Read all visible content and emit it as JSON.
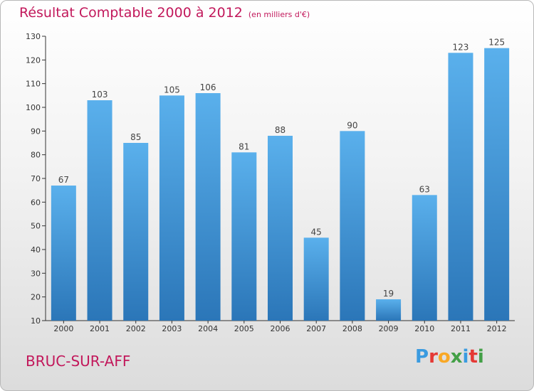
{
  "title": "Résultat Comptable 2000 à 2012",
  "subtitle": "(en milliers d'€)",
  "commune": "BRUC-SUR-AFF",
  "logo": {
    "text": "Proxiti",
    "colors": [
      "#3a9be0",
      "#e53935",
      "#f9a825",
      "#43a047",
      "#3a9be0",
      "#e53935",
      "#43a047"
    ]
  },
  "colors": {
    "title": "#c2185b",
    "bar_top": "#5ab0ec",
    "bar_bottom": "#2b76b8",
    "axis": "#333333"
  },
  "chart_data": {
    "type": "bar",
    "categories": [
      "2000",
      "2001",
      "2002",
      "2003",
      "2004",
      "2005",
      "2006",
      "2007",
      "2008",
      "2009",
      "2010",
      "2011",
      "2012"
    ],
    "values": [
      67,
      103,
      85,
      105,
      106,
      81,
      88,
      45,
      90,
      19,
      63,
      123,
      125
    ],
    "ylim": [
      10,
      130
    ],
    "yticks": [
      10,
      20,
      30,
      40,
      50,
      60,
      70,
      80,
      90,
      100,
      110,
      120,
      130
    ],
    "grid": false,
    "legend": "none",
    "xlabel": "",
    "ylabel": ""
  }
}
